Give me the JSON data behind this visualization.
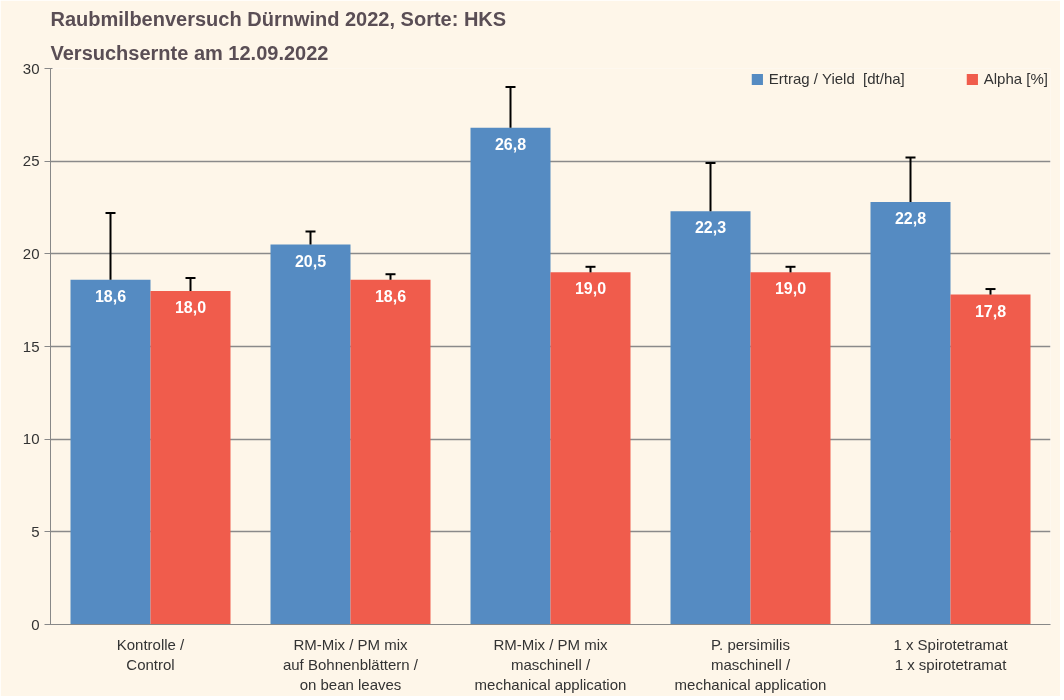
{
  "chart_data": {
    "type": "bar",
    "title": "Raubmilbenversuch Dürnwind 2022, Sorte: HKS",
    "subtitle": "Versuchsernte am 12.09.2022",
    "categories": [
      "Kontrolle /\nControl",
      "RM-Mix / PM mix\nauf Bohnenblättern /\non bean leaves",
      "RM-Mix / PM mix\nmaschinell /\nmechanical application",
      "P. persimilis\nmaschinell /\nmechanical application",
      "1 x Spirotetramat\n1 x spirotetramat"
    ],
    "series": [
      {
        "name": "Ertrag / Yield  [dt/ha]",
        "color": "#558bc2",
        "values": [
          18.6,
          20.5,
          26.8,
          22.3,
          22.8
        ],
        "value_labels": [
          "18,6",
          "20,5",
          "26,8",
          "22,3",
          "22,8"
        ],
        "errors": [
          [
            18.6,
            22.2
          ],
          [
            20.5,
            21.2
          ],
          [
            26.8,
            29.0
          ],
          [
            22.3,
            24.9
          ],
          [
            22.8,
            25.2
          ]
        ]
      },
      {
        "name": "Alpha [%]",
        "color": "#f05c4c",
        "values": [
          18.0,
          18.6,
          19.0,
          19.0,
          17.8
        ],
        "value_labels": [
          "18,0",
          "18,6",
          "19,0",
          "19,0",
          "17,8"
        ],
        "errors": [
          [
            18.0,
            18.7
          ],
          [
            18.6,
            18.9
          ],
          [
            19.0,
            19.3
          ],
          [
            19.0,
            19.3
          ],
          [
            17.8,
            18.1
          ]
        ]
      }
    ],
    "ylim": [
      0,
      30
    ],
    "yticks": [
      0,
      5,
      10,
      15,
      20,
      25,
      30
    ],
    "grid": "y",
    "legend": "top right"
  }
}
